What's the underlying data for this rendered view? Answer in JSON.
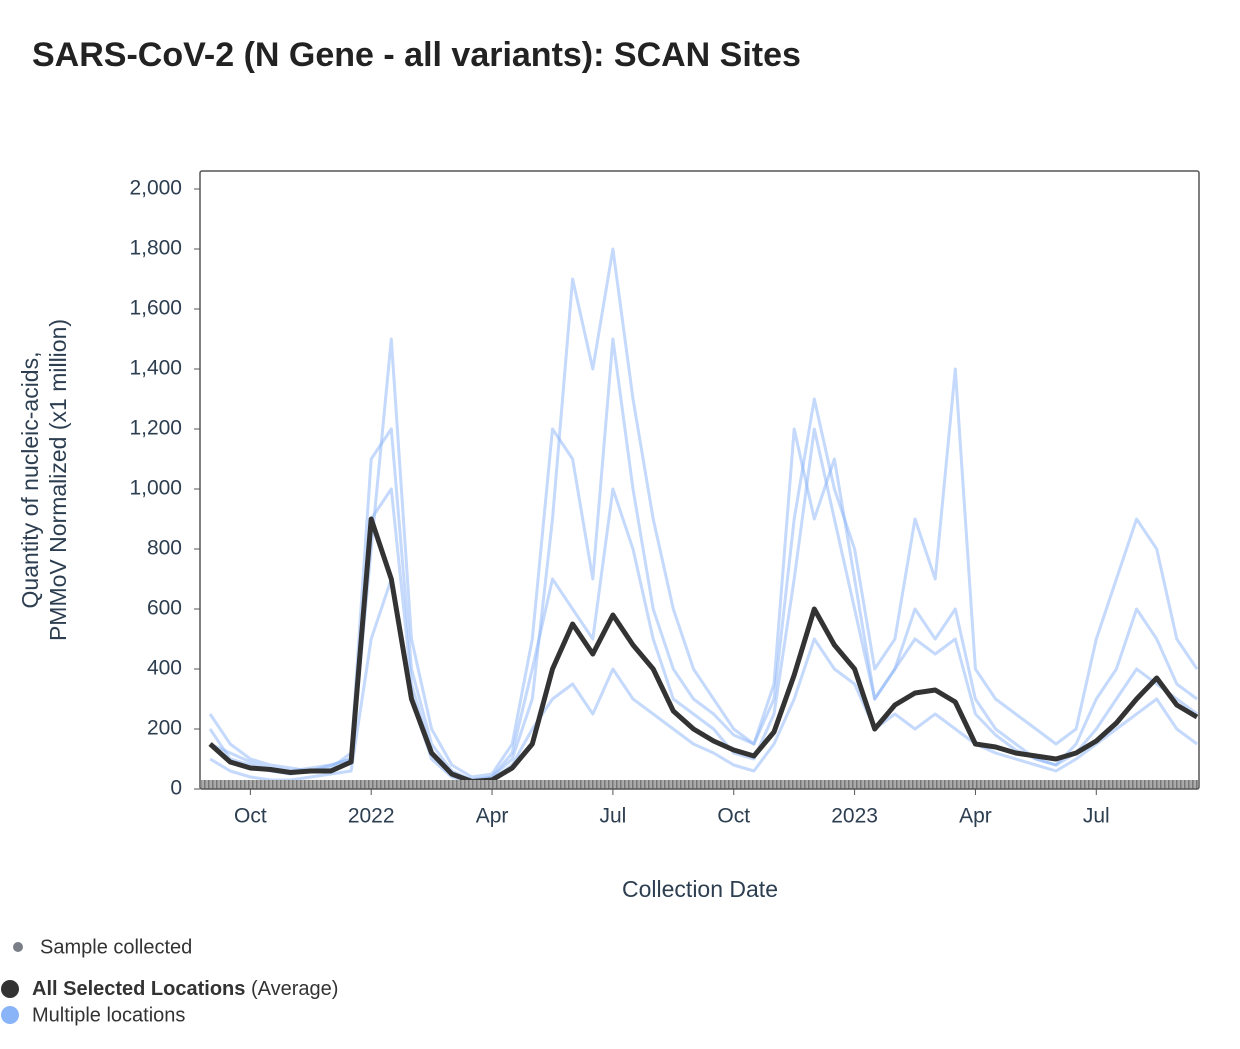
{
  "chart_data": {
    "type": "line",
    "title": "SARS-CoV-2 (N Gene - all variants): SCAN Sites",
    "y_label_lines": [
      "Quantity of nucleic-acids,",
      "PMMoV Normalized (x1 million)"
    ],
    "x_label": "Collection Date",
    "sample_label": "Sample collected",
    "x": [
      8,
      8.5,
      9,
      9.5,
      10,
      10.5,
      11,
      11.5,
      12,
      12.5,
      13,
      13.5,
      14,
      14.5,
      15,
      15.5,
      16,
      16.5,
      17,
      17.5,
      18,
      18.5,
      19,
      19.5,
      20,
      20.5,
      21,
      21.5,
      22,
      22.5,
      23,
      23.5,
      24,
      24.5,
      25,
      25.5,
      26,
      26.5,
      27,
      27.5,
      28,
      28.5,
      29,
      29.5,
      30,
      30.5,
      31,
      31.5,
      32,
      32.5
    ],
    "xlim": [
      7.75,
      32.55
    ],
    "xticks": [
      {
        "value": 9,
        "label": "Oct"
      },
      {
        "value": 12,
        "label": "2022"
      },
      {
        "value": 15,
        "label": "Apr"
      },
      {
        "value": 18,
        "label": "Jul"
      },
      {
        "value": 21,
        "label": "Oct"
      },
      {
        "value": 24,
        "label": "2023"
      },
      {
        "value": 27,
        "label": "Apr"
      },
      {
        "value": 30,
        "label": "Jul"
      }
    ],
    "ylim": [
      0,
      2060
    ],
    "yticks": [
      0,
      200,
      400,
      600,
      800,
      {
        "value": 1000,
        "label": "1,000"
      },
      {
        "value": 1200,
        "label": "1,200"
      },
      {
        "value": 1400,
        "label": "1,400"
      },
      {
        "value": 1600,
        "label": "1,600"
      },
      {
        "value": 1800,
        "label": "1,800"
      },
      {
        "value": 2000,
        "label": "2,000"
      }
    ],
    "series": [
      {
        "name": "All Selected Locations",
        "name_suffix": "(Average)",
        "color": "#333333",
        "values": [
          150,
          90,
          70,
          65,
          55,
          60,
          60,
          90,
          900,
          700,
          300,
          120,
          50,
          25,
          30,
          70,
          150,
          400,
          550,
          450,
          580,
          480,
          400,
          260,
          200,
          160,
          130,
          110,
          190,
          380,
          600,
          480,
          400,
          200,
          280,
          320,
          330,
          290,
          150,
          140,
          120,
          110,
          100,
          120,
          160,
          220,
          300,
          370,
          280,
          240
        ]
      },
      {
        "name": "Multiple locations",
        "color": "#8ab4f8",
        "lines": [
          [
            200,
            100,
            80,
            60,
            50,
            60,
            70,
            120,
            1100,
            1200,
            400,
            150,
            60,
            30,
            40,
            100,
            300,
            900,
            1700,
            1400,
            1800,
            1300,
            900,
            600,
            400,
            300,
            200,
            150,
            300,
            900,
            1300,
            1000,
            800,
            400,
            500,
            900,
            700,
            1400,
            400,
            300,
            250,
            200,
            150,
            200,
            500,
            700,
            900,
            800,
            500,
            400
          ],
          [
            150,
            120,
            90,
            70,
            60,
            70,
            80,
            100,
            800,
            1500,
            500,
            200,
            80,
            40,
            50,
            150,
            500,
            1200,
            1100,
            700,
            1500,
            1000,
            600,
            400,
            300,
            250,
            180,
            150,
            350,
            1200,
            900,
            1100,
            700,
            300,
            400,
            600,
            500,
            600,
            300,
            200,
            150,
            100,
            80,
            150,
            300,
            400,
            600,
            500,
            350,
            300
          ],
          [
            100,
            60,
            40,
            30,
            30,
            40,
            50,
            60,
            500,
            700,
            300,
            100,
            40,
            20,
            30,
            80,
            200,
            300,
            350,
            250,
            400,
            300,
            250,
            200,
            150,
            120,
            80,
            60,
            150,
            300,
            500,
            400,
            350,
            200,
            250,
            200,
            250,
            200,
            150,
            120,
            100,
            80,
            60,
            100,
            150,
            200,
            250,
            300,
            200,
            150
          ],
          [
            250,
            150,
            100,
            80,
            70,
            60,
            80,
            100,
            900,
            1000,
            350,
            120,
            50,
            30,
            40,
            120,
            400,
            700,
            600,
            500,
            1000,
            800,
            500,
            300,
            250,
            200,
            120,
            100,
            250,
            700,
            1200,
            900,
            600,
            300,
            400,
            500,
            450,
            500,
            250,
            180,
            130,
            100,
            80,
            120,
            200,
            300,
            400,
            350,
            300,
            250
          ]
        ]
      }
    ]
  }
}
